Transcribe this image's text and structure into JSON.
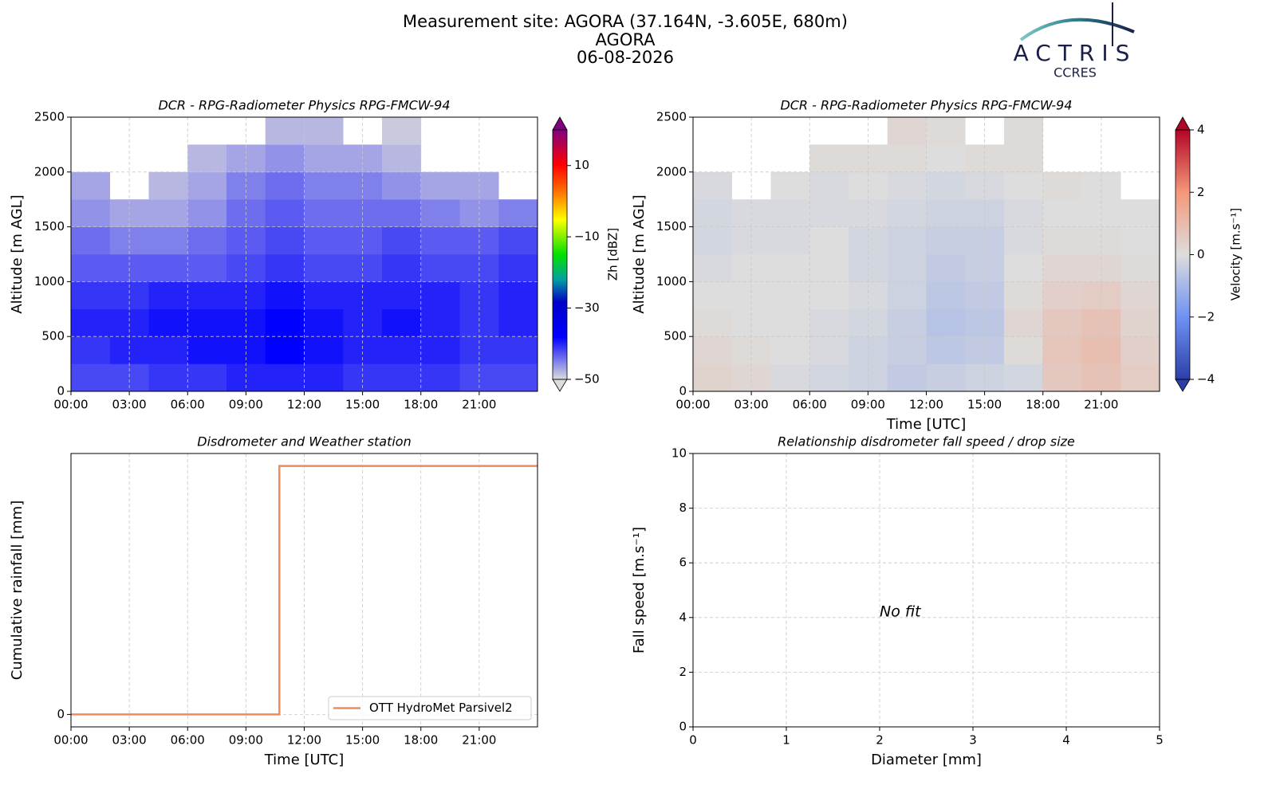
{
  "header": {
    "title": [
      "Measurement site: AGORA (37.164N, -3.605E, 680m)",
      "AGORA",
      "06-08-2026"
    ],
    "logo": "ACTRIS",
    "logo_sub": "CCRES"
  },
  "chart_data": [
    {
      "type": "heatmap",
      "title": "DCR - RPG-Radiometer Physics RPG-FMCW-94",
      "ylabel": "Altitude [m AGL]",
      "xlim": [
        0,
        24
      ],
      "ylim": [
        0,
        2500
      ],
      "xticks": [
        {
          "value": 0,
          "label": "00:00"
        },
        {
          "value": 3,
          "label": "03:00"
        },
        {
          "value": 6,
          "label": "06:00"
        },
        {
          "value": 9,
          "label": "09:00"
        },
        {
          "value": 12,
          "label": "12:00"
        },
        {
          "value": 15,
          "label": "15:00"
        },
        {
          "value": 18,
          "label": "18:00"
        },
        {
          "value": 21,
          "label": "21:00"
        }
      ],
      "yticks": [
        0,
        500,
        1000,
        1500,
        2000,
        2500
      ],
      "grid": true,
      "colormap": "rainbow",
      "colorbar": {
        "label": "Zh [dBZ]",
        "lim": [
          -50,
          20
        ],
        "extend": "both",
        "ticks": [
          10,
          {
            "value": -10,
            "label": "−10"
          },
          {
            "value": -30,
            "label": "−30"
          },
          {
            "value": -50,
            "label": "−50"
          }
        ]
      },
      "x_edges": [
        0,
        2,
        4,
        6,
        8,
        10,
        12,
        14,
        16,
        18,
        20,
        22,
        24
      ],
      "y_edges": [
        0,
        250,
        500,
        750,
        1000,
        1250,
        1500,
        1750,
        2000,
        2250,
        2500
      ],
      "z": [
        [
          -42,
          -42,
          -41,
          -41,
          -40,
          -40,
          -40,
          -41,
          -41,
          -41,
          -42,
          -42
        ],
        [
          -41,
          -40,
          -40,
          -39,
          -39,
          -38,
          -39,
          -40,
          -40,
          -40,
          -41,
          -41
        ],
        [
          -40,
          -40,
          -39,
          -39,
          -39,
          -38,
          -39,
          -40,
          -39,
          -40,
          -41,
          -40
        ],
        [
          -41,
          -41,
          -40,
          -40,
          -40,
          -39,
          -40,
          -40,
          -40,
          -40,
          -41,
          -40
        ],
        [
          -43,
          -43,
          -43,
          -43,
          -42,
          -41,
          -42,
          -42,
          -41,
          -42,
          -42,
          -41
        ],
        [
          -44,
          -45,
          -45,
          -44,
          -43,
          -42,
          -43,
          -43,
          -42,
          -43,
          -43,
          -42
        ],
        [
          -46,
          -47,
          -47,
          -46,
          -44,
          -43,
          -44,
          -44,
          -44,
          -45,
          -46,
          -45
        ],
        [
          -47,
          null,
          -48,
          -47,
          -45,
          -44,
          -45,
          -45,
          -46,
          -47,
          -47,
          null
        ],
        [
          null,
          null,
          null,
          -48,
          -47,
          -46,
          -47,
          -47,
          -48,
          null,
          null,
          null
        ],
        [
          null,
          null,
          null,
          null,
          null,
          -48,
          -48,
          null,
          -49,
          null,
          null,
          null
        ]
      ]
    },
    {
      "type": "heatmap",
      "title": "DCR - RPG-Radiometer Physics RPG-FMCW-94",
      "ylabel": "Altitude [m AGL]",
      "xlabel": "Time [UTC]",
      "xlim": [
        0,
        24
      ],
      "ylim": [
        0,
        2500
      ],
      "xticks": [
        {
          "value": 0,
          "label": "00:00"
        },
        {
          "value": 3,
          "label": "03:00"
        },
        {
          "value": 6,
          "label": "06:00"
        },
        {
          "value": 9,
          "label": "09:00"
        },
        {
          "value": 12,
          "label": "12:00"
        },
        {
          "value": 15,
          "label": "15:00"
        },
        {
          "value": 18,
          "label": "18:00"
        },
        {
          "value": 21,
          "label": "21:00"
        }
      ],
      "yticks": [
        0,
        500,
        1000,
        1500,
        2000,
        2500
      ],
      "grid": true,
      "colormap": "coolwarm",
      "colorbar": {
        "label": "Velocity [m.s⁻¹]",
        "lim": [
          -4,
          4
        ],
        "extend": "both",
        "ticks": [
          4,
          2,
          0,
          {
            "value": -2,
            "label": "−2"
          },
          {
            "value": -4,
            "label": "−4"
          }
        ]
      },
      "x_edges": [
        0,
        2,
        4,
        6,
        8,
        10,
        12,
        14,
        16,
        18,
        20,
        22,
        24
      ],
      "y_edges": [
        0,
        250,
        500,
        750,
        1000,
        1250,
        1500,
        1750,
        2000,
        2250,
        2500
      ],
      "z": [
        [
          0.3,
          0.2,
          -0.1,
          -0.2,
          -0.3,
          -0.5,
          -0.4,
          -0.3,
          -0.2,
          0.6,
          0.8,
          0.5
        ],
        [
          0.2,
          0.1,
          0,
          -0.1,
          -0.3,
          -0.4,
          -0.6,
          -0.5,
          0.1,
          0.7,
          0.9,
          0.4
        ],
        [
          0.1,
          0,
          0,
          -0.1,
          -0.2,
          -0.4,
          -0.7,
          -0.6,
          0.2,
          0.6,
          0.8,
          0.3
        ],
        [
          0,
          0,
          0,
          0,
          -0.1,
          -0.3,
          -0.6,
          -0.5,
          0.1,
          0.4,
          0.5,
          0.2
        ],
        [
          -0.1,
          0,
          0,
          0,
          -0.2,
          -0.3,
          -0.5,
          -0.4,
          0,
          0.2,
          0.2,
          0.1
        ],
        [
          -0.2,
          -0.1,
          -0.1,
          0,
          -0.2,
          -0.3,
          -0.4,
          -0.4,
          -0.1,
          0.1,
          0.1,
          0
        ],
        [
          -0.2,
          -0.1,
          -0.1,
          -0.1,
          -0.1,
          -0.2,
          -0.3,
          -0.3,
          -0.1,
          0,
          0,
          0
        ],
        [
          -0.1,
          null,
          0,
          -0.1,
          0,
          -0.1,
          -0.2,
          -0.1,
          0,
          0.1,
          0,
          null
        ],
        [
          null,
          null,
          null,
          0.1,
          0.1,
          0.1,
          0,
          0.1,
          0.1,
          null,
          null,
          null
        ],
        [
          null,
          null,
          null,
          null,
          null,
          0.2,
          0.1,
          null,
          0.1,
          null,
          null,
          null
        ]
      ]
    },
    {
      "type": "line",
      "title": "Disdrometer and Weather station",
      "ylabel": "Cumulative rainfall [mm]",
      "xlabel": "Time [UTC]",
      "xlim": [
        0,
        24
      ],
      "ylim": [
        -0.05,
        1.05
      ],
      "xticks": [
        {
          "value": 0,
          "label": "00:00"
        },
        {
          "value": 3,
          "label": "03:00"
        },
        {
          "value": 6,
          "label": "06:00"
        },
        {
          "value": 9,
          "label": "09:00"
        },
        {
          "value": 12,
          "label": "12:00"
        },
        {
          "value": 15,
          "label": "15:00"
        },
        {
          "value": 18,
          "label": "18:00"
        },
        {
          "value": 21,
          "label": "21:00"
        }
      ],
      "yticks": [
        0
      ],
      "grid": true,
      "step": "post",
      "legend": "lower right",
      "x": [
        0,
        10.72,
        23.98
      ],
      "series": [
        {
          "name": "OTT HydroMet Parsivel2",
          "color": "#ef8a5e",
          "values": [
            0,
            1,
            1
          ]
        }
      ]
    },
    {
      "type": "scatter",
      "title": "Relationship disdrometer fall speed / drop size",
      "ylabel": "Fall speed [m.s⁻¹]",
      "xlabel": "Diameter [mm]",
      "xlim": [
        0,
        5
      ],
      "ylim": [
        0,
        10
      ],
      "xticks": [
        0,
        1,
        2,
        3,
        4,
        5
      ],
      "yticks": [
        0,
        2,
        4,
        6,
        8,
        10
      ],
      "grid": true,
      "annotation": "No fit"
    }
  ]
}
